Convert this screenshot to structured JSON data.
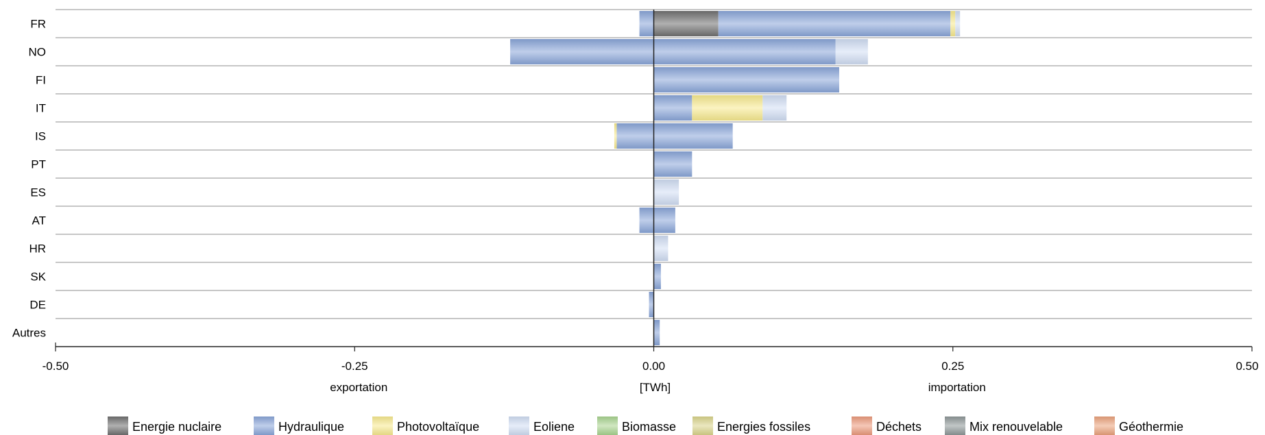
{
  "chart_data": {
    "type": "bar",
    "orientation": "horizontal",
    "stacked": true,
    "categories": [
      "FR",
      "NO",
      "FI",
      "IT",
      "IS",
      "PT",
      "ES",
      "AT",
      "HR",
      "SK",
      "DE",
      "Autres"
    ],
    "xlim": [
      -0.5,
      0.5
    ],
    "x_ticks": [
      "-0.50",
      "-0.25",
      "0.00",
      "0.25",
      "0.50"
    ],
    "x_tick_values": [
      -0.5,
      -0.25,
      0,
      0.25,
      0.5
    ],
    "axis_labels": {
      "left": "exportation",
      "center": "[TWh]",
      "right": "importation"
    },
    "grid": "horizontal",
    "legend_position": "bottom",
    "series": [
      {
        "name": "Energie nuclaire",
        "color": "#707070",
        "values": [
          0.054,
          0,
          0,
          0,
          0,
          0,
          0,
          0,
          0,
          0,
          0,
          0
        ]
      },
      {
        "name": "Hydraulique",
        "color": "#8aa6d9",
        "values": [
          0.194,
          0.152,
          0.155,
          0.032,
          0.066,
          0.032,
          0,
          0.018,
          0,
          0.006,
          0,
          0.005
        ]
      },
      {
        "name": "Photovoltaïque",
        "color": "#f7ea8e",
        "values": [
          0.004,
          0,
          0,
          0.059,
          0,
          0,
          0,
          0,
          0,
          0,
          0,
          0
        ]
      },
      {
        "name": "Eoliene",
        "color": "#d1def4",
        "values": [
          0.004,
          0.027,
          0,
          0.02,
          0,
          0,
          0.021,
          0,
          0.012,
          0,
          0,
          0
        ]
      },
      {
        "name": "Biomasse",
        "color": "#a9d48f",
        "values": [
          0,
          0,
          0,
          0,
          0,
          0,
          0,
          0,
          0,
          0,
          0,
          0
        ]
      },
      {
        "name": "Energies fossiles",
        "color": "#d9d48a",
        "values": [
          0,
          0,
          0,
          0,
          0,
          0,
          0,
          0,
          0,
          0,
          0,
          0
        ]
      },
      {
        "name": "Déchets",
        "color": "#ec9a7c",
        "values": [
          0,
          0,
          0,
          0,
          0,
          0,
          0,
          0,
          0,
          0,
          0,
          0
        ]
      },
      {
        "name": "Mix renouvelable",
        "color": "#8e9798",
        "values": [
          0,
          0,
          0,
          0,
          0,
          0,
          0,
          0,
          0,
          0,
          0,
          0
        ]
      },
      {
        "name": "Géothermie",
        "color": "#eba27c",
        "values": [
          0,
          0,
          0,
          0,
          0,
          0,
          0,
          0,
          0,
          0,
          0,
          0
        ]
      }
    ],
    "negative_series": [
      {
        "name": "Hydraulique",
        "values": [
          -0.012,
          -0.12,
          0,
          0,
          -0.031,
          0,
          0,
          -0.012,
          0,
          0,
          -0.004,
          0
        ]
      },
      {
        "name": "Photovoltaïque",
        "values": [
          0,
          0,
          0,
          0,
          -0.002,
          0,
          0,
          0,
          0,
          0,
          0,
          0
        ]
      }
    ]
  }
}
